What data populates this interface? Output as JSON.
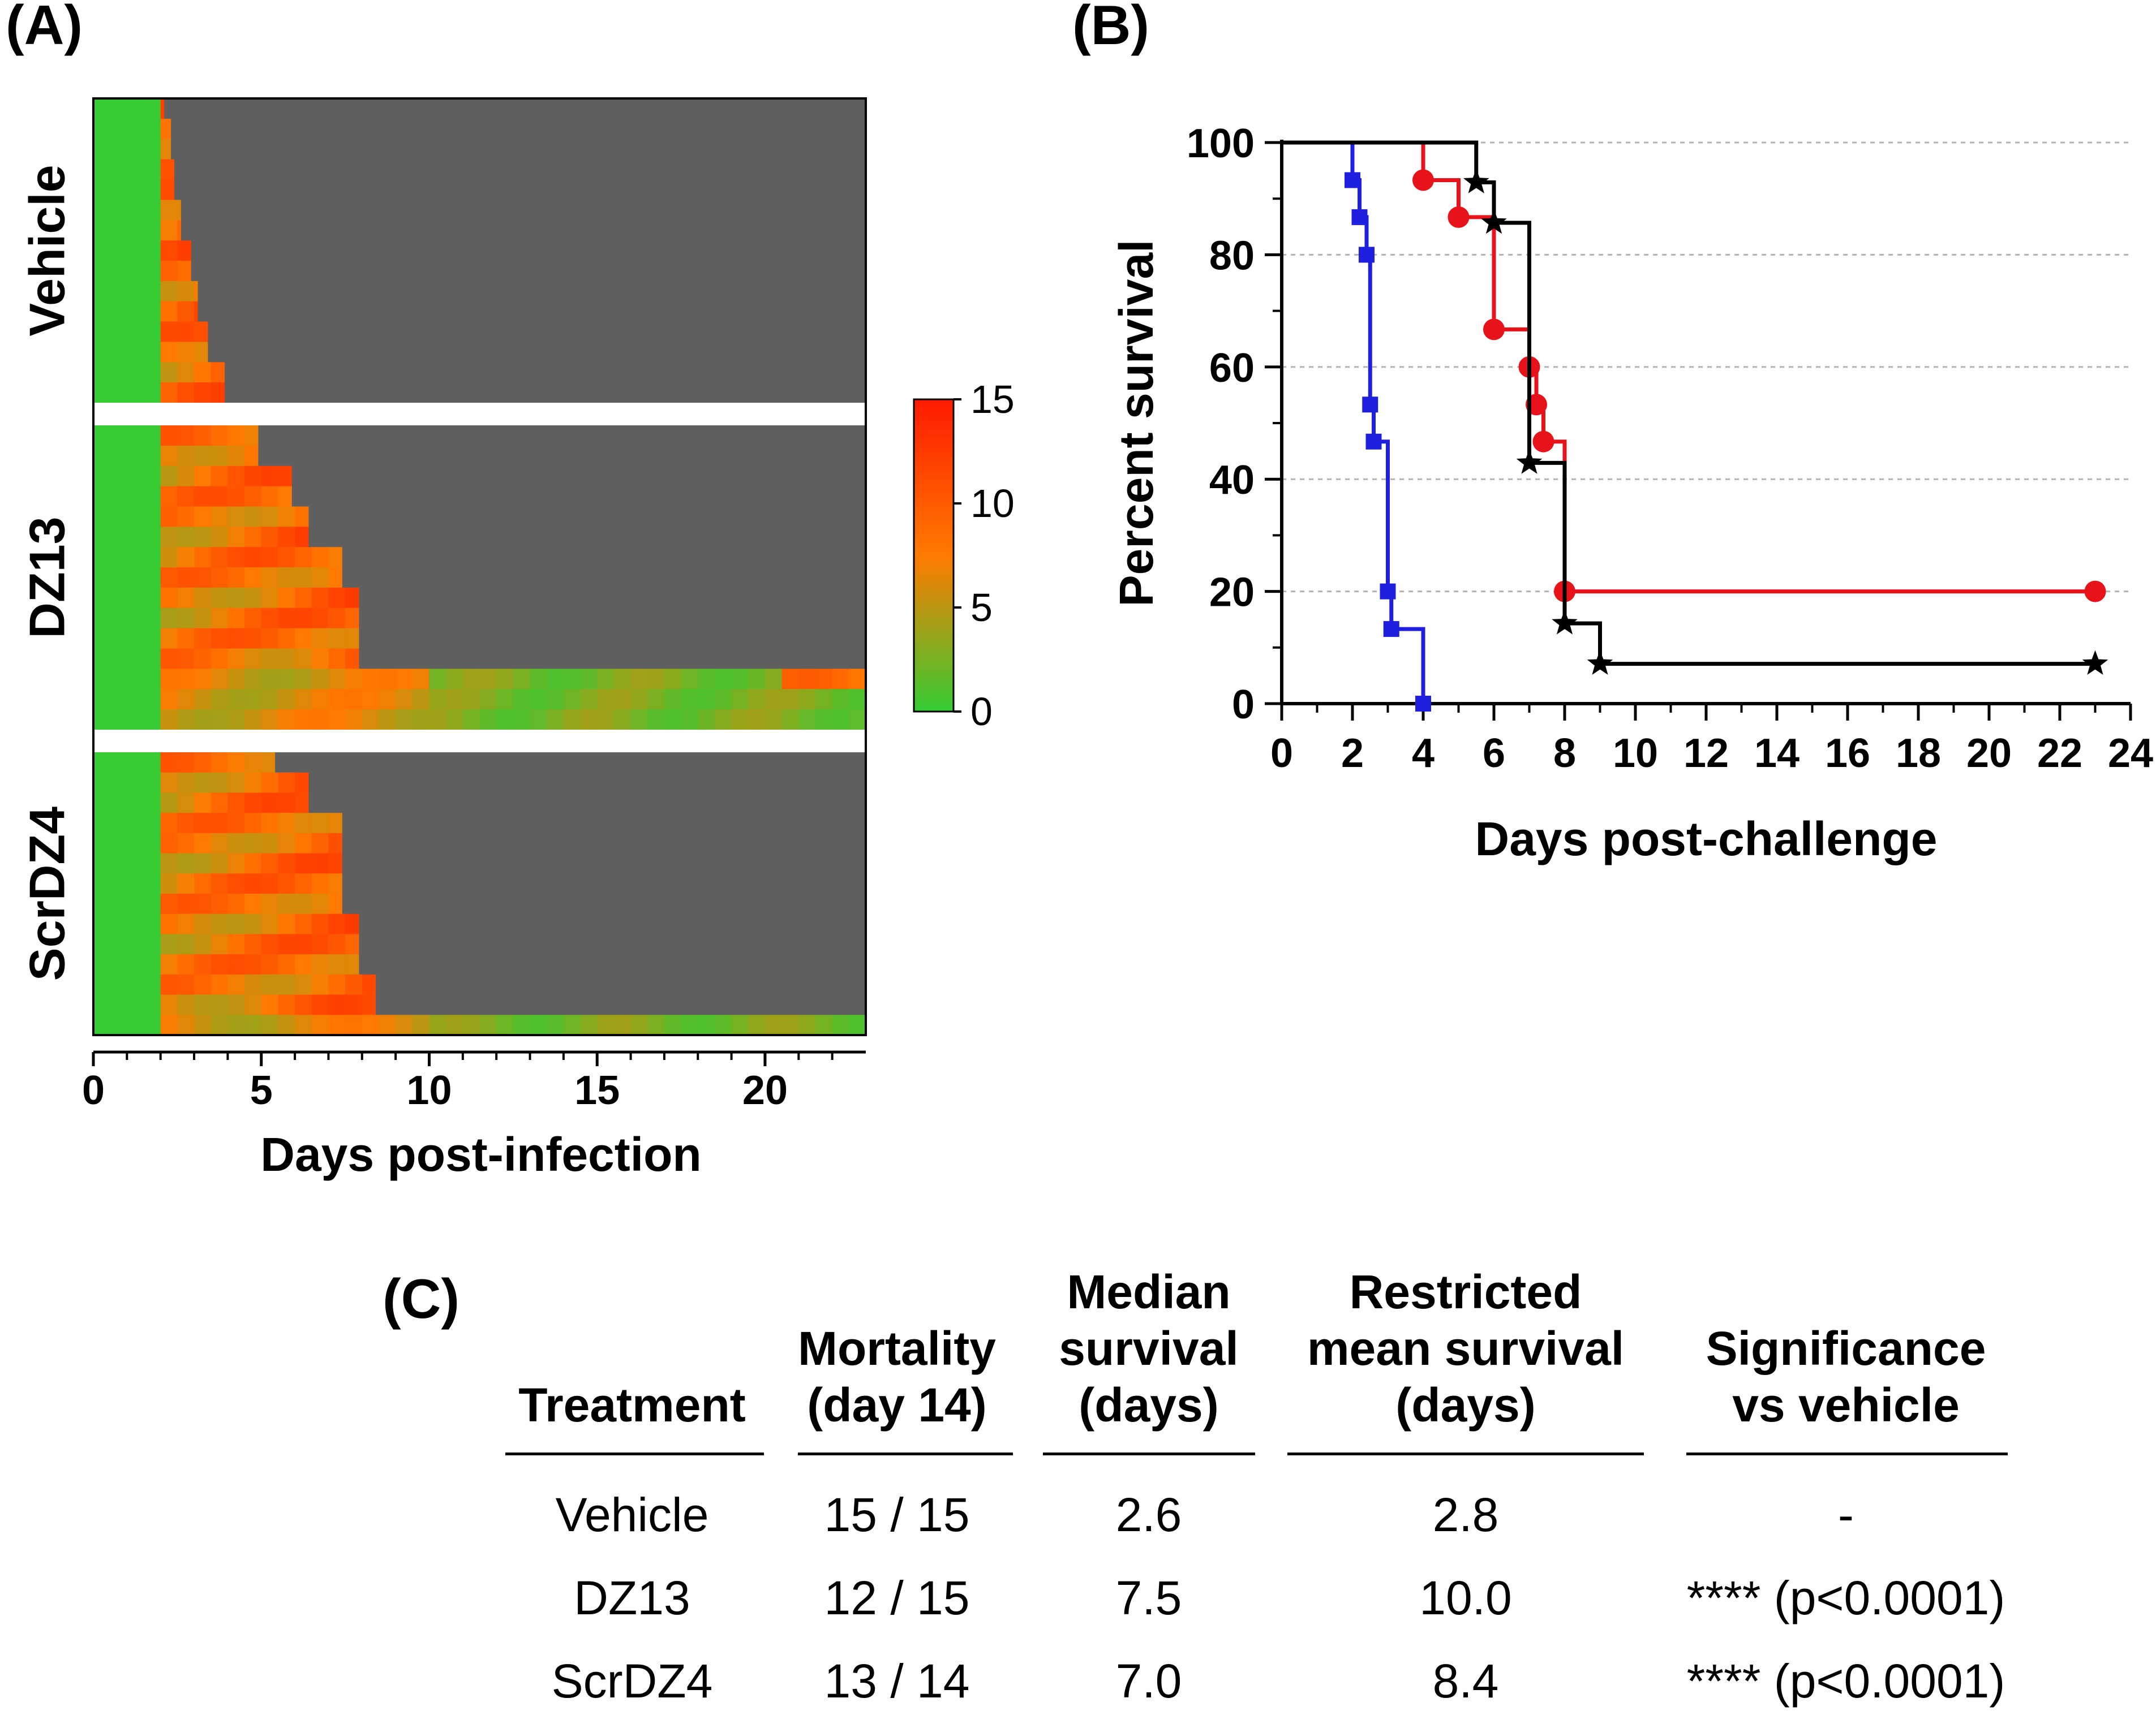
{
  "panels": {
    "a": "(A)",
    "b": "(B)",
    "c": "(C)"
  },
  "colors": {
    "vehicle": "#1f1fe0",
    "dz13": "#e8121a",
    "scrdz4": "#000000",
    "dead": "#5f5f5f",
    "heat_low": "#33cc33",
    "heat_mid": "#ff7a00",
    "heat_high": "#ff1a00"
  },
  "chart_data": [
    {
      "type": "heatmap",
      "xlabel": "Days post-infection",
      "x_ticks": [
        0,
        5,
        10,
        15,
        20
      ],
      "xlim": [
        0,
        23
      ],
      "groups": [
        "Vehicle",
        "DZ13",
        "ScrDZ4"
      ],
      "colorbar": {
        "min": 0,
        "max": 15,
        "ticks": [
          "0",
          "5",
          "10",
          "15"
        ]
      },
      "death_days": [
        [
          2.1,
          2.3,
          2.3,
          2.4,
          2.4,
          2.6,
          2.6,
          2.9,
          2.9,
          3.1,
          3.1,
          3.4,
          3.4,
          3.9,
          3.9
        ],
        [
          4.9,
          4.9,
          5.9,
          5.9,
          6.4,
          6.4,
          7.4,
          7.4,
          7.9,
          7.9,
          7.9,
          7.9,
          23,
          23,
          23
        ],
        [
          5.4,
          6.4,
          6.4,
          7.4,
          7.4,
          7.4,
          7.4,
          7.4,
          7.9,
          7.9,
          7.9,
          8.4,
          8.4,
          23
        ]
      ]
    },
    {
      "type": "line",
      "step": true,
      "xlabel": "Days post-challenge",
      "ylabel": "Percent survival",
      "xlim": [
        0,
        24
      ],
      "ylim": [
        0,
        100
      ],
      "x_ticks": [
        0,
        2,
        4,
        6,
        8,
        10,
        12,
        14,
        16,
        18,
        20,
        22,
        24
      ],
      "y_ticks": [
        0,
        20,
        40,
        60,
        80,
        100
      ],
      "series": [
        {
          "name": "Vehicle",
          "marker": "square",
          "color": "#1f1fe0",
          "x": [
            0,
            2.0,
            2.2,
            2.4,
            2.5,
            2.6,
            3.0,
            3.1,
            4.0
          ],
          "y": [
            100,
            93.3,
            86.7,
            80,
            53.3,
            46.7,
            20,
            13.3,
            0
          ],
          "markers_x": [
            2.0,
            2.2,
            2.4,
            2.5,
            2.6,
            3.0,
            3.1,
            4.0
          ],
          "markers_y": [
            93.3,
            86.7,
            80,
            53.3,
            46.7,
            20,
            13.3,
            0
          ]
        },
        {
          "name": "DZ13",
          "marker": "circle",
          "color": "#e8121a",
          "x": [
            0,
            4.0,
            5.0,
            6.0,
            7.0,
            7.2,
            7.4,
            8.0,
            23.0
          ],
          "y": [
            100,
            93.3,
            86.7,
            66.7,
            60,
            53.3,
            46.7,
            20,
            20
          ],
          "markers_x": [
            4.0,
            5.0,
            6.0,
            7.0,
            7.2,
            7.4,
            8.0,
            23.0
          ],
          "markers_y": [
            93.3,
            86.7,
            66.7,
            60,
            53.3,
            46.7,
            20,
            20
          ]
        },
        {
          "name": "ScrDZ4",
          "marker": "star",
          "color": "#000000",
          "x": [
            0,
            5.5,
            6.0,
            7.0,
            8.0,
            9.0,
            23.0
          ],
          "y": [
            100,
            92.9,
            85.7,
            42.9,
            14.3,
            7.1,
            7.1
          ],
          "markers_x": [
            5.5,
            6.0,
            7.0,
            8.0,
            9.0,
            23.0
          ],
          "markers_y": [
            92.9,
            85.7,
            42.9,
            14.3,
            7.1,
            7.1
          ]
        }
      ]
    }
  ],
  "table": {
    "headers": [
      [
        "Treatment"
      ],
      [
        "Mortality",
        "(day 14)"
      ],
      [
        "Median",
        "survival",
        "(days)"
      ],
      [
        "Restricted",
        "mean survival",
        "(days)"
      ],
      [
        "Significance",
        "vs vehicle"
      ]
    ],
    "rows": [
      [
        "Vehicle",
        "15 / 15",
        "2.6",
        "2.8",
        "-"
      ],
      [
        "DZ13",
        "12 / 15",
        "7.5",
        "10.0",
        "**** (p<0.0001)"
      ],
      [
        "ScrDZ4",
        "13 / 14",
        "7.0",
        "8.4",
        "**** (p<0.0001)"
      ]
    ]
  }
}
